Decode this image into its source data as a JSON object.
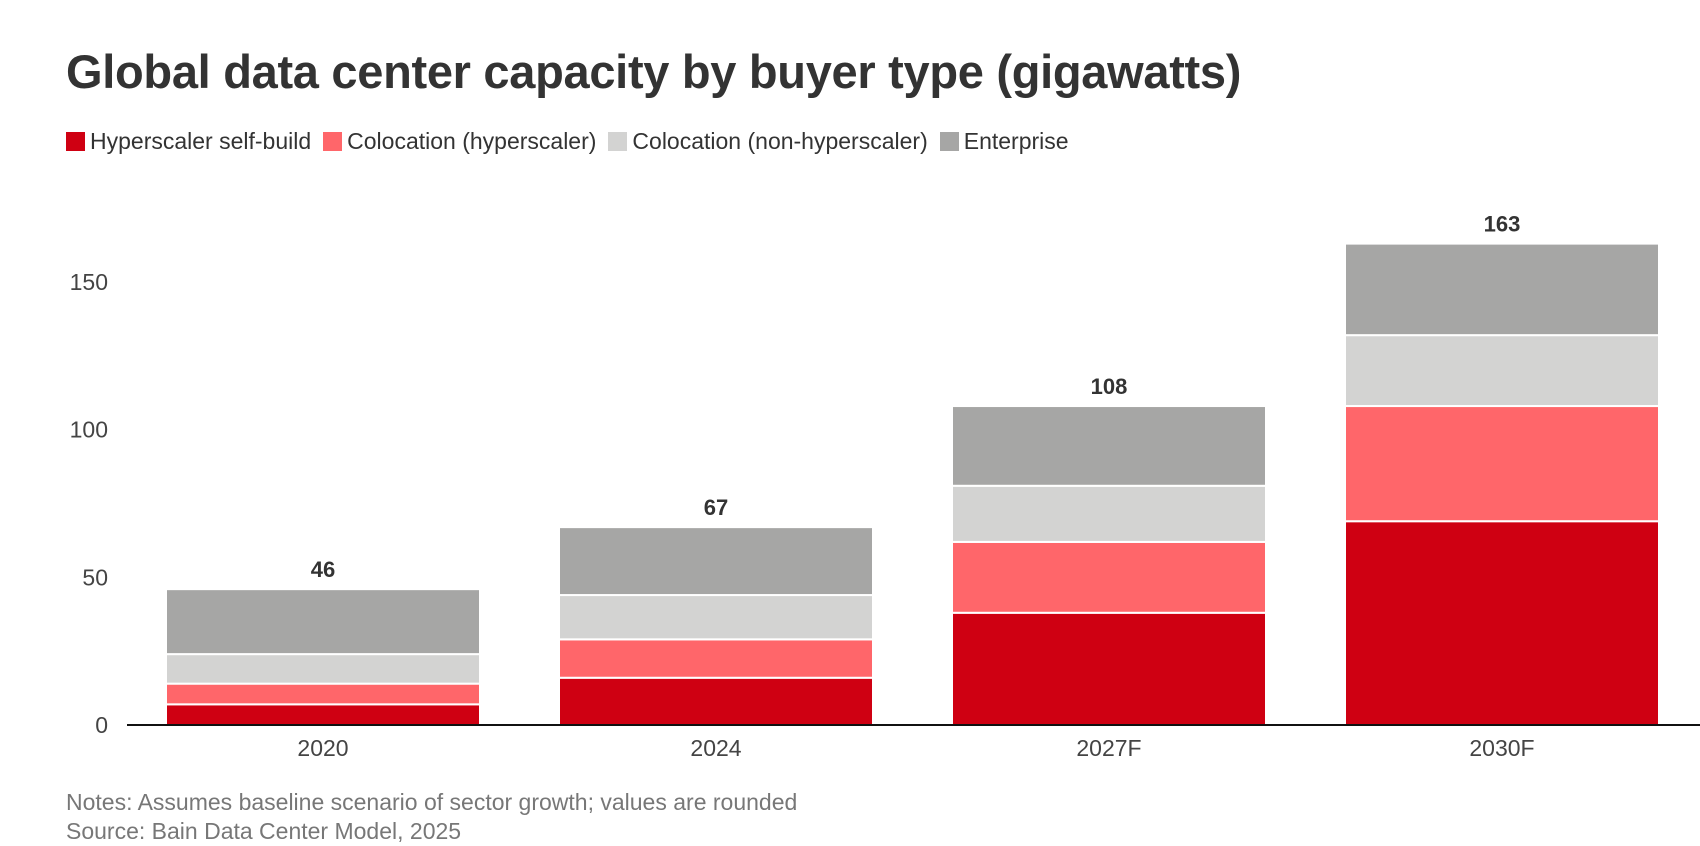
{
  "chart_data": {
    "type": "bar",
    "stacked": true,
    "title": "Global data center capacity by buyer type (gigawatts)",
    "xlabel": "",
    "ylabel": "",
    "ylim": [
      0,
      170
    ],
    "yticks": [
      0,
      50,
      100,
      150
    ],
    "grid": false,
    "legend_position": "top-left",
    "categories": [
      "2020",
      "2024",
      "2027F",
      "2030F"
    ],
    "totals": [
      46,
      67,
      108,
      163
    ],
    "series": [
      {
        "name": "Hyperscaler self-build",
        "color": "#CF0012",
        "values": [
          7,
          16,
          38,
          69
        ]
      },
      {
        "name": "Colocation (hyperscaler)",
        "color": "#FF666A",
        "values": [
          7,
          13,
          24,
          39
        ]
      },
      {
        "name": "Colocation (non-hyperscaler)",
        "color": "#D3D3D2",
        "values": [
          10,
          15,
          19,
          24
        ]
      },
      {
        "name": "Enterprise",
        "color": "#A6A6A5",
        "values": [
          22,
          23,
          27,
          31
        ]
      }
    ],
    "notes": "Notes: Assumes baseline scenario of sector growth; values are rounded",
    "source": "Source: Bain Data Center Model, 2025"
  }
}
